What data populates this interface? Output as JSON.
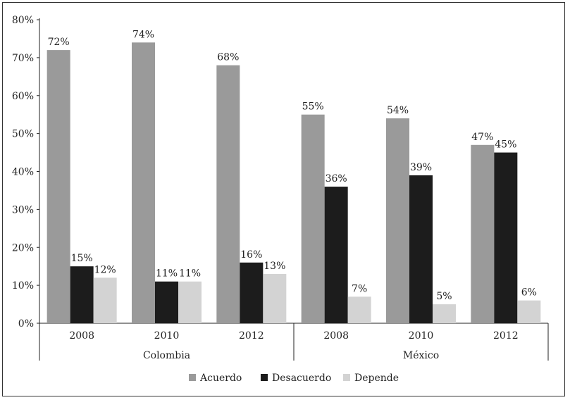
{
  "chart_data": {
    "type": "bar",
    "groups": [
      "Colombia",
      "México"
    ],
    "categories": [
      "2008",
      "2010",
      "2012",
      "2008",
      "2010",
      "2012"
    ],
    "category_groups": [
      0,
      0,
      0,
      1,
      1,
      1
    ],
    "series": [
      {
        "name": "Acuerdo",
        "color": "#9a9a9a",
        "values": [
          72,
          74,
          68,
          55,
          54,
          47
        ],
        "labels": [
          "72%",
          "74%",
          "68%",
          "55%",
          "54%",
          "47%"
        ]
      },
      {
        "name": "Desacuerdo",
        "color": "#1c1c1c",
        "values": [
          15,
          11,
          16,
          36,
          39,
          45
        ],
        "labels": [
          "15%",
          "11%",
          "16%",
          "36%",
          "39%",
          "45%"
        ]
      },
      {
        "name": "Depende",
        "color": "#d3d3d3",
        "values": [
          12,
          11,
          13,
          7,
          5,
          6
        ],
        "labels": [
          "12%",
          "11%",
          "13%",
          "7%",
          "5%",
          "6%"
        ]
      }
    ],
    "ylim": [
      0,
      80
    ],
    "yticks": [
      "0%",
      "10%",
      "20%",
      "30%",
      "40%",
      "50%",
      "60%",
      "70%",
      "80%"
    ],
    "grid": false,
    "legend_position": "bottom-center"
  }
}
